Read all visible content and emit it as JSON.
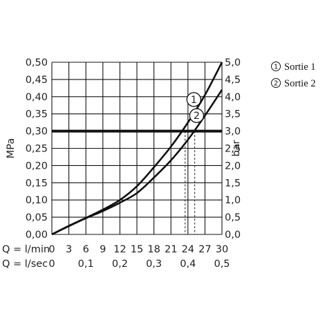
{
  "chart_data": {
    "type": "line",
    "x_flow_lmin": {
      "label": "Q = l/min",
      "ticks": [
        "0",
        "3",
        "6",
        "9",
        "12",
        "15",
        "18",
        "21",
        "24",
        "27",
        "30"
      ],
      "range": [
        0,
        30
      ]
    },
    "x_flow_lsec": {
      "label": "Q = l/sec",
      "ticks": [
        "0",
        "0,1",
        "0,2",
        "0,3",
        "0,4",
        "0,5"
      ],
      "range": [
        0,
        0.5
      ]
    },
    "y_left": {
      "label": "MPa",
      "ticks": [
        "0,00",
        "0,05",
        "0,10",
        "0,15",
        "0,20",
        "0,25",
        "0,30",
        "0,35",
        "0,40",
        "0,45",
        "0,50"
      ],
      "range": [
        0,
        0.5
      ]
    },
    "y_right": {
      "label": "bar",
      "ticks": [
        "0,0",
        "0,5",
        "1,0",
        "1,5",
        "2,0",
        "2,5",
        "3,0",
        "3,5",
        "4,0",
        "4,5",
        "5,0"
      ],
      "range": [
        0,
        5
      ]
    },
    "grid": true,
    "legend_position": "top-right",
    "reference_line": {
      "y": 0.3
    },
    "series": [
      {
        "name": "Sortie 1",
        "marker": "1",
        "x": [
          0,
          3,
          6,
          9,
          12,
          15,
          18,
          21,
          24,
          27,
          30
        ],
        "y": [
          0,
          0.025,
          0.048,
          0.072,
          0.1,
          0.14,
          0.195,
          0.255,
          0.325,
          0.405,
          0.5
        ],
        "drop_x": 23.5
      },
      {
        "name": "Sortie 2",
        "marker": "2",
        "x": [
          0,
          3,
          6,
          9,
          12,
          15,
          18,
          21,
          24,
          27,
          30
        ],
        "y": [
          0,
          0.024,
          0.047,
          0.068,
          0.092,
          0.12,
          0.165,
          0.215,
          0.275,
          0.345,
          0.42
        ],
        "drop_x": 25.2
      }
    ]
  }
}
